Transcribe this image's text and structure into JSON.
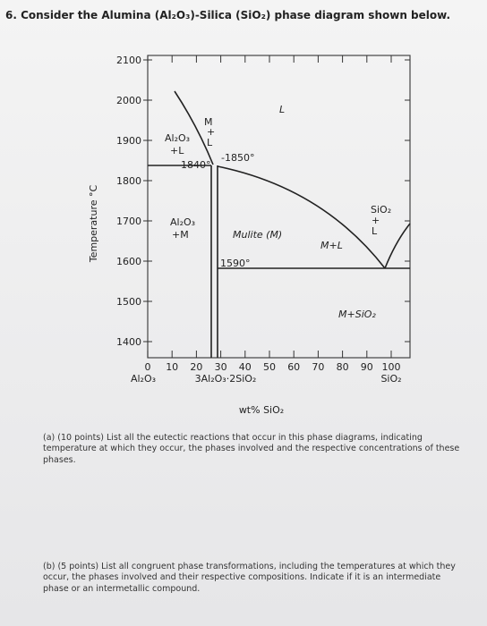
{
  "question": {
    "title": "6. Consider the Alumina (Al₂O₃)-Silica (SiO₂) phase diagram shown below."
  },
  "figure": {
    "y_axis_label": "Temperature °C",
    "y_ticks": [
      "2100",
      "2000",
      "1900",
      "1800",
      "1700",
      "1600",
      "1500",
      "1400"
    ],
    "x_ticks": [
      "0",
      "10",
      "20",
      "30",
      "40",
      "50",
      "60",
      "70",
      "80",
      "90",
      "100"
    ],
    "x_axis_label": "wt% SiO₂",
    "x_end_labels": [
      "Al₂O₃",
      "3Al₂O₃·2SiO₂",
      "SiO₂"
    ],
    "region_labels": [
      "L",
      "Al₂O₃",
      "+L",
      "M",
      "+",
      "L",
      "1840°",
      "-1850°",
      "Al₂O₃",
      "+M",
      "Mulite (M)",
      "1590°",
      "M+L",
      "SiO₂",
      "+",
      "L",
      "M+SiO₂"
    ]
  },
  "parts": [
    {
      "text": "(a) (10 points) List all the eutectic reactions that occur in this phase diagrams, indicating temperature at which they occur, the phases involved and the respective concentrations of these phases."
    },
    {
      "text": "(b) (5 points) List all congruent phase transformations, including the temperatures at which they occur, the phases involved and their respective compositions. Indicate if it is an intermediate phase or an intermetallic compound."
    }
  ]
}
